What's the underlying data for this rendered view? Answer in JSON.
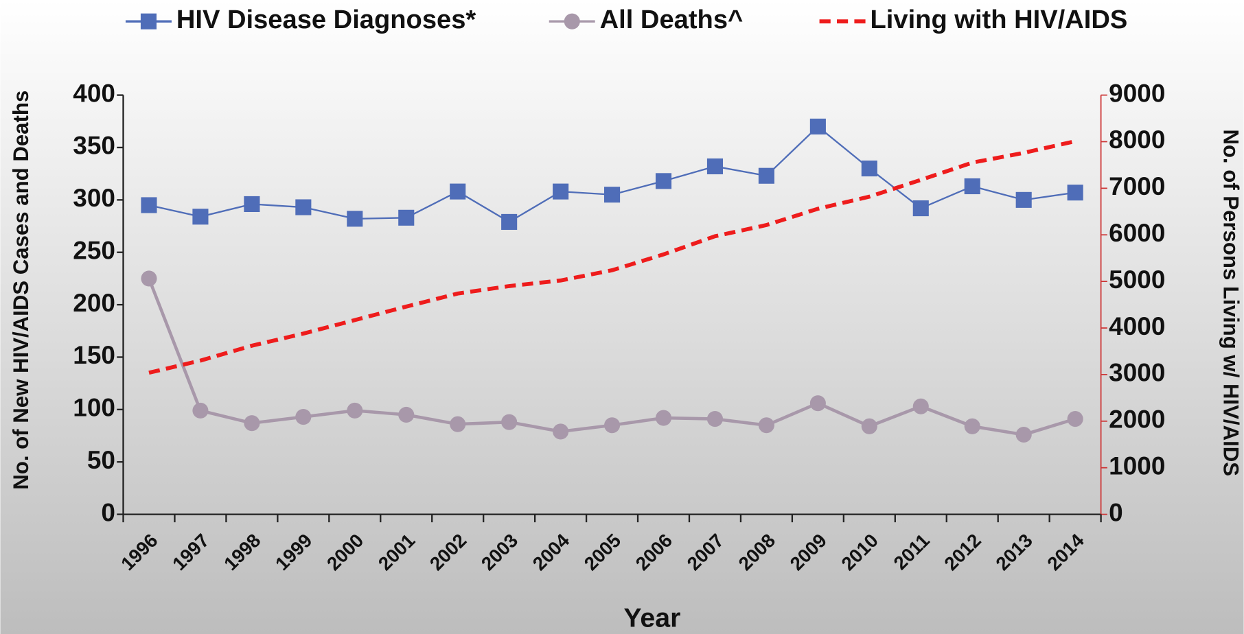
{
  "chart_data": {
    "type": "line",
    "categories": [
      "1996",
      "1997",
      "1998",
      "1999",
      "2000",
      "2001",
      "2002",
      "2003",
      "2004",
      "2005",
      "2006",
      "2007",
      "2008",
      "2009",
      "2010",
      "2011",
      "2012",
      "2013",
      "2014"
    ],
    "series": [
      {
        "name": "HIV Disease Diagnoses*",
        "color": "#4f6db8",
        "marker": "square",
        "line_style": "solid",
        "values": [
          295,
          284,
          296,
          293,
          282,
          283,
          308,
          279,
          308,
          305,
          318,
          332,
          323,
          370,
          330,
          292,
          313,
          300,
          307
        ]
      },
      {
        "name": "All Deaths^",
        "color": "#a898aa",
        "marker": "circle",
        "line_style": "solid",
        "values": [
          225,
          99,
          87,
          93,
          99,
          95,
          86,
          88,
          79,
          85,
          92,
          91,
          85,
          106,
          84,
          103,
          84,
          76,
          91
        ]
      },
      {
        "name": "Living with HIV/AIDS",
        "color": "#ee1c1c",
        "marker": "none",
        "line_style": "dashed",
        "axis": "y2",
        "values": [
          3040,
          3300,
          3620,
          3880,
          4170,
          4460,
          4740,
          4900,
          5020,
          5240,
          5580,
          5970,
          6210,
          6560,
          6820,
          7180,
          7550,
          7760,
          8010
        ]
      }
    ],
    "xlabel": "Year",
    "ylabel": "No. of New HIV/AIDS Cases and Deaths",
    "y2label": "No. of Persons Living w/ HIV/AIDS",
    "ylim": [
      0,
      400
    ],
    "yticks": [
      0,
      50,
      100,
      150,
      200,
      250,
      300,
      350,
      400
    ],
    "y2lim": [
      0,
      9000
    ],
    "y2ticks": [
      0,
      1000,
      2000,
      3000,
      4000,
      5000,
      6000,
      7000,
      8000,
      9000
    ],
    "y2_axis_color": "#cc3333",
    "legend": "top"
  }
}
